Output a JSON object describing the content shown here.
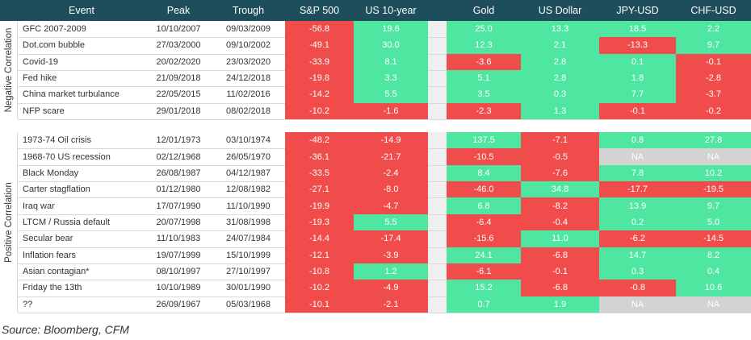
{
  "header": [
    "Event",
    "Peak",
    "Trough",
    "S&P 500",
    "US 10-year",
    "Gold",
    "US Dollar",
    "JPY-USD",
    "CHF-USD"
  ],
  "groups": [
    {
      "label": "Negative Correlation",
      "rows": [
        [
          "GFC 2007-2009",
          "10/10/2007",
          "09/03/2009",
          "-56.8",
          "19.6",
          "25.0",
          "13.3",
          "18.5",
          "2.2"
        ],
        [
          "Dot.com bubble",
          "27/03/2000",
          "09/10/2002",
          "-49.1",
          "30.0",
          "12.3",
          "2.1",
          "-13.3",
          "9.7"
        ],
        [
          "Covid-19",
          "20/02/2020",
          "23/03/2020",
          "-33.9",
          "8.1",
          "-3.6",
          "2.8",
          "0.1",
          "-0.1"
        ],
        [
          "Fed hike",
          "21/09/2018",
          "24/12/2018",
          "-19.8",
          "3.3",
          "5.1",
          "2.8",
          "1.8",
          "-2.8"
        ],
        [
          "China market turbulance",
          "22/05/2015",
          "11/02/2016",
          "-14.2",
          "5.5",
          "3.5",
          "0.3",
          "7.7",
          "-3.7"
        ],
        [
          "NFP scare",
          "29/01/2018",
          "08/02/2018",
          "-10.2",
          "-1.6",
          "-2.3",
          "1.3",
          "-0.1",
          "-0.2"
        ]
      ]
    },
    {
      "label": "Positive Correlation",
      "rows": [
        [
          "1973-74 Oil crisis",
          "12/01/1973",
          "03/10/1974",
          "-48.2",
          "-14.9",
          "137.5",
          "-7.1",
          "0.8",
          "27.8"
        ],
        [
          "1968-70 US recession",
          "02/12/1968",
          "26/05/1970",
          "-36.1",
          "-21.7",
          "-10.5",
          "-0.5",
          "NA",
          "NA"
        ],
        [
          "Black Monday",
          "26/08/1987",
          "04/12/1987",
          "-33.5",
          "-2.4",
          "8.4",
          "-7.6",
          "7.8",
          "10.2"
        ],
        [
          "Carter stagflation",
          "01/12/1980",
          "12/08/1982",
          "-27.1",
          "-8.0",
          "-46.0",
          "34.8",
          "-17.7",
          "-19.5"
        ],
        [
          "Iraq war",
          "17/07/1990",
          "11/10/1990",
          "-19.9",
          "-4.7",
          "6.8",
          "-8.2",
          "13.9",
          "9.7"
        ],
        [
          "LTCM / Russia default",
          "20/07/1998",
          "31/08/1998",
          "-19.3",
          "5.5",
          "-6.4",
          "-0.4",
          "0.2",
          "5.0"
        ],
        [
          "Secular bear",
          "11/10/1983",
          "24/07/1984",
          "-14.4",
          "-17.4",
          "-15.6",
          "11.0",
          "-6.2",
          "-14.5"
        ],
        [
          "Inflation fears",
          "19/07/1999",
          "15/10/1999",
          "-12.1",
          "-3.9",
          "24.1",
          "-6.8",
          "14.7",
          "8.2"
        ],
        [
          "Asian contagian*",
          "08/10/1997",
          "27/10/1997",
          "-10.8",
          "1.2",
          "-6.1",
          "-0.1",
          "0.3",
          "0.4"
        ],
        [
          "Friday the 13th",
          "10/10/1989",
          "30/01/1990",
          "-10.2",
          "-4.9",
          "15.2",
          "-6.8",
          "-0.8",
          "10.6"
        ],
        [
          "??",
          "26/09/1967",
          "05/03/1968",
          "-10.1",
          "-2.1",
          "0.7",
          "1.9",
          "NA",
          "NA"
        ]
      ]
    }
  ],
  "source": "Source: Bloomberg, CFM"
}
